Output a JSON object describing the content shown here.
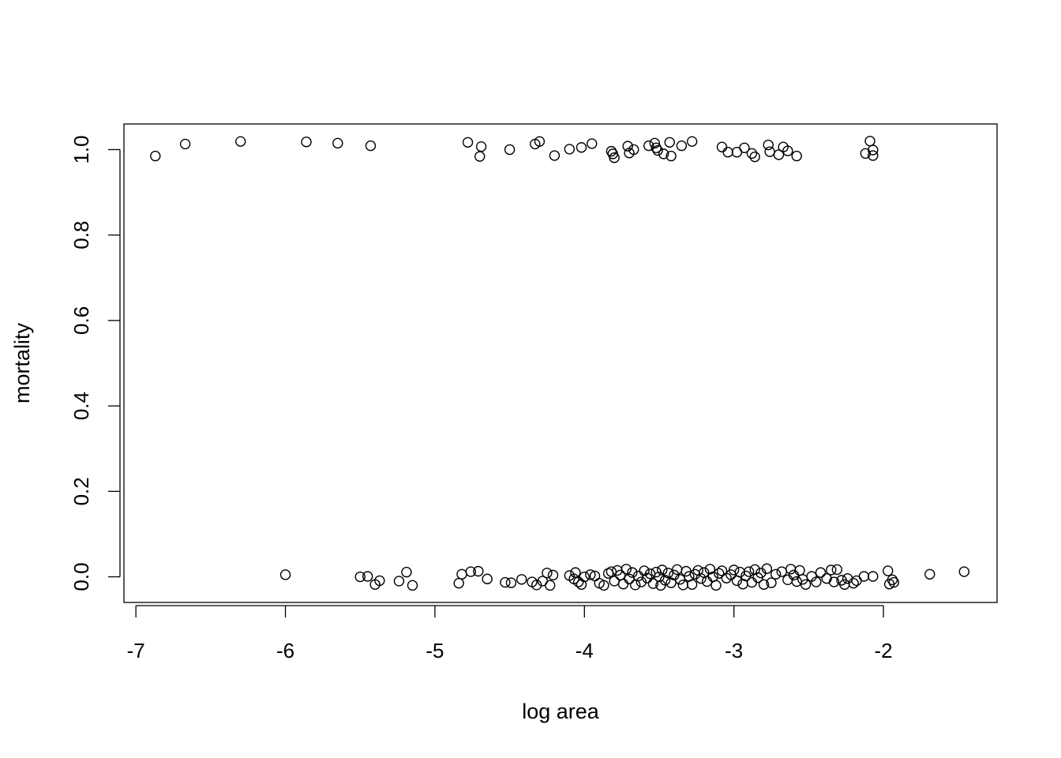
{
  "chart_data": {
    "type": "scatter",
    "title": "",
    "xlabel": "log area",
    "ylabel": "mortality",
    "xlim": [
      -7.08,
      -1.24
    ],
    "ylim": [
      -0.06,
      1.06
    ],
    "x_ticks": [
      -7,
      -6,
      -5,
      -4,
      -3,
      -2
    ],
    "x_tick_labels": [
      "-7",
      "-6",
      "-5",
      "-4",
      "-3",
      "-2"
    ],
    "y_ticks": [
      0.0,
      0.2,
      0.4,
      0.6,
      0.8,
      1.0
    ],
    "y_tick_labels": [
      "0.0",
      "0.2",
      "0.4",
      "0.6",
      "0.8",
      "1.0"
    ],
    "grid": false,
    "marker": "open-circle",
    "series": [
      {
        "points": [
          [
            -6.87,
            0.985
          ],
          [
            -6.67,
            1.013
          ],
          [
            -6.3,
            1.019
          ],
          [
            -5.86,
            1.018
          ],
          [
            -5.65,
            1.015
          ],
          [
            -5.43,
            1.009
          ],
          [
            -4.78,
            1.017
          ],
          [
            -4.69,
            1.007
          ],
          [
            -4.7,
            0.984
          ],
          [
            -4.5,
            1.0
          ],
          [
            -4.33,
            1.013
          ],
          [
            -4.3,
            1.019
          ],
          [
            -4.2,
            0.986
          ],
          [
            -4.1,
            1.001
          ],
          [
            -4.02,
            1.005
          ],
          [
            -3.95,
            1.014
          ],
          [
            -3.82,
            0.996
          ],
          [
            -3.81,
            0.99
          ],
          [
            -3.8,
            0.981
          ],
          [
            -3.71,
            1.008
          ],
          [
            -3.7,
            0.992
          ],
          [
            -3.67,
            1.0
          ],
          [
            -3.57,
            1.009
          ],
          [
            -3.53,
            1.015
          ],
          [
            -3.52,
            1.004
          ],
          [
            -3.51,
            0.998
          ],
          [
            -3.47,
            0.99
          ],
          [
            -3.43,
            1.017
          ],
          [
            -3.42,
            0.985
          ],
          [
            -3.35,
            1.009
          ],
          [
            -3.28,
            1.019
          ],
          [
            -3.08,
            1.006
          ],
          [
            -3.04,
            0.994
          ],
          [
            -2.98,
            0.994
          ],
          [
            -2.93,
            1.004
          ],
          [
            -2.88,
            0.991
          ],
          [
            -2.86,
            0.983
          ],
          [
            -2.77,
            1.011
          ],
          [
            -2.76,
            0.995
          ],
          [
            -2.7,
            0.988
          ],
          [
            -2.67,
            1.006
          ],
          [
            -2.64,
            0.997
          ],
          [
            -2.58,
            0.985
          ],
          [
            -2.12,
            0.991
          ],
          [
            -2.09,
            1.02
          ],
          [
            -2.07,
            0.999
          ],
          [
            -2.07,
            0.986
          ],
          [
            -6.0,
            0.005
          ],
          [
            -5.5,
            0.0
          ],
          [
            -5.45,
            0.001
          ],
          [
            -5.4,
            -0.018
          ],
          [
            -5.37,
            -0.009
          ],
          [
            -5.24,
            -0.01
          ],
          [
            -5.19,
            0.011
          ],
          [
            -5.15,
            -0.02
          ],
          [
            -4.84,
            -0.015
          ],
          [
            -4.82,
            0.006
          ],
          [
            -4.76,
            0.012
          ],
          [
            -4.71,
            0.013
          ],
          [
            -4.65,
            -0.005
          ],
          [
            -4.53,
            -0.013
          ],
          [
            -4.49,
            -0.014
          ],
          [
            -4.42,
            -0.006
          ],
          [
            -4.35,
            -0.012
          ],
          [
            -4.32,
            -0.019
          ],
          [
            -4.28,
            -0.01
          ],
          [
            -4.25,
            0.009
          ],
          [
            -4.23,
            -0.02
          ],
          [
            -4.21,
            0.004
          ],
          [
            -4.1,
            0.003
          ],
          [
            -4.07,
            -0.005
          ],
          [
            -4.06,
            0.01
          ],
          [
            -4.04,
            -0.012
          ],
          [
            -4.02,
            -0.018
          ],
          [
            -4.0,
            0.0
          ],
          [
            -3.96,
            0.005
          ],
          [
            -3.93,
            0.002
          ],
          [
            -3.9,
            -0.015
          ],
          [
            -3.87,
            -0.02
          ],
          [
            -3.84,
            0.008
          ],
          [
            -3.82,
            0.012
          ],
          [
            -3.8,
            -0.01
          ],
          [
            -3.78,
            0.015
          ],
          [
            -3.76,
            0.004
          ],
          [
            -3.74,
            -0.017
          ],
          [
            -3.72,
            0.018
          ],
          [
            -3.7,
            -0.005
          ],
          [
            -3.68,
            0.01
          ],
          [
            -3.66,
            -0.019
          ],
          [
            -3.64,
            0.002
          ],
          [
            -3.62,
            -0.012
          ],
          [
            -3.6,
            0.014
          ],
          [
            -3.58,
            -0.003
          ],
          [
            -3.56,
            0.007
          ],
          [
            -3.54,
            -0.016
          ],
          [
            -3.52,
            0.011
          ],
          [
            -3.5,
            0.0
          ],
          [
            -3.49,
            -0.02
          ],
          [
            -3.48,
            0.016
          ],
          [
            -3.46,
            -0.008
          ],
          [
            -3.44,
            0.009
          ],
          [
            -3.42,
            -0.014
          ],
          [
            -3.4,
            0.004
          ],
          [
            -3.38,
            0.017
          ],
          [
            -3.36,
            -0.006
          ],
          [
            -3.34,
            -0.019
          ],
          [
            -3.32,
            0.013
          ],
          [
            -3.3,
            0.001
          ],
          [
            -3.28,
            -0.018
          ],
          [
            -3.26,
            0.006
          ],
          [
            -3.24,
            0.015
          ],
          [
            -3.22,
            -0.004
          ],
          [
            -3.2,
            0.01
          ],
          [
            -3.18,
            -0.011
          ],
          [
            -3.16,
            0.018
          ],
          [
            -3.14,
            0.0
          ],
          [
            -3.12,
            -0.02
          ],
          [
            -3.1,
            0.008
          ],
          [
            -3.08,
            0.014
          ],
          [
            -3.05,
            -0.003
          ],
          [
            -3.02,
            0.005
          ],
          [
            -3.0,
            0.016
          ],
          [
            -2.98,
            -0.009
          ],
          [
            -2.96,
            0.011
          ],
          [
            -2.94,
            -0.017
          ],
          [
            -2.92,
            0.002
          ],
          [
            -2.9,
            0.012
          ],
          [
            -2.88,
            -0.013
          ],
          [
            -2.86,
            0.017
          ],
          [
            -2.84,
            -0.002
          ],
          [
            -2.82,
            0.009
          ],
          [
            -2.8,
            -0.018
          ],
          [
            -2.78,
            0.019
          ],
          [
            -2.75,
            -0.014
          ],
          [
            -2.72,
            0.006
          ],
          [
            -2.68,
            0.012
          ],
          [
            -2.64,
            -0.007
          ],
          [
            -2.62,
            0.018
          ],
          [
            -2.6,
            0.004
          ],
          [
            -2.58,
            -0.011
          ],
          [
            -2.56,
            0.015
          ],
          [
            -2.54,
            -0.006
          ],
          [
            -2.52,
            -0.018
          ],
          [
            -2.48,
            0.001
          ],
          [
            -2.45,
            -0.012
          ],
          [
            -2.42,
            0.01
          ],
          [
            -2.38,
            -0.004
          ],
          [
            -2.35,
            0.016
          ],
          [
            -2.33,
            -0.012
          ],
          [
            -2.31,
            0.017
          ],
          [
            -2.28,
            -0.008
          ],
          [
            -2.26,
            -0.018
          ],
          [
            -2.24,
            -0.004
          ],
          [
            -2.2,
            -0.015
          ],
          [
            -2.18,
            -0.009
          ],
          [
            -2.13,
            0.001
          ],
          [
            -2.07,
            0.001
          ],
          [
            -1.97,
            0.014
          ],
          [
            -1.96,
            -0.017
          ],
          [
            -1.94,
            -0.007
          ],
          [
            -1.93,
            -0.013
          ],
          [
            -1.69,
            0.006
          ],
          [
            -1.46,
            0.012
          ]
        ]
      }
    ]
  }
}
